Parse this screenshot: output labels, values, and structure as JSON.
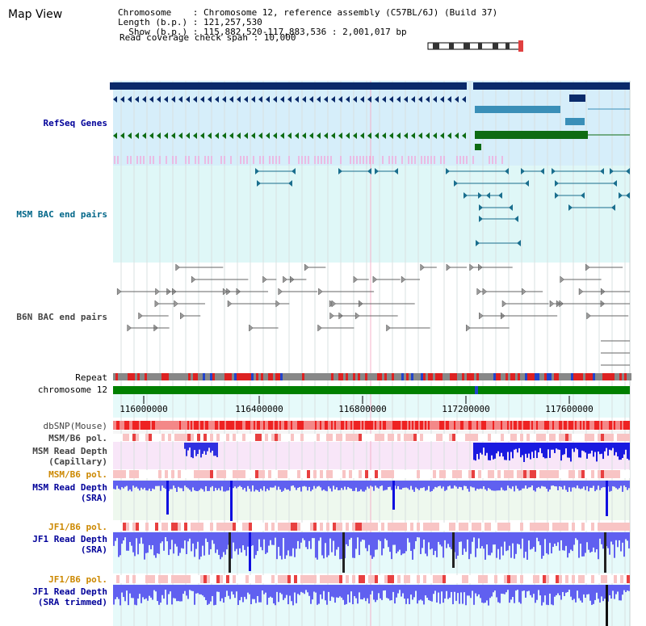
{
  "header": {
    "title": "Map View",
    "chromosome_line": "Chromosome    : Chromosome 12, reference assembly (C57BL/6J) (Build 37)",
    "length_line": "Length (b.p.) : 121,257,530",
    "show_line": "  Show (b.p.) : 115,882,520-117,883,536 : 2,001,017 bp",
    "read_span_line": "Read coverage check span : 10,000"
  },
  "tracks": {
    "refseq": "RefSeq Genes",
    "msm_bac": "MSM BAC end pairs",
    "b6n_bac": "B6N BAC end pairs",
    "repeat": "Repeat",
    "chromosome": "chromosome 12",
    "dbsnp": "dbSNP(Mouse)",
    "msm_b6_pol_1": "MSM/B6 pol.",
    "msm_read_depth_cap_1": "MSM Read Depth",
    "msm_read_depth_cap_2": "(Capillary)",
    "msm_b6_pol_2": "MSM/B6 pol.",
    "msm_read_depth_sra_1": "MSM Read Depth",
    "msm_read_depth_sra_2": "(SRA)",
    "jf1_b6_pol_1": "JF1/B6 pol.",
    "jf1_read_depth_sra_1": "JF1 Read Depth",
    "jf1_read_depth_sra_2": "(SRA)",
    "jf1_b6_pol_2": "JF1/B6 pol.",
    "jf1_read_depth_trim_1": "JF1 Read Depth",
    "jf1_read_depth_trim_2": "(SRA trimmed)"
  },
  "axis": {
    "ticks": [
      "116000000",
      "116400000",
      "116800000",
      "117200000",
      "117600000"
    ]
  },
  "colors": {
    "refseq_bg": "#d6eefa",
    "bac_bg": "#dff7f7",
    "gene_dark": "#0a2a6a",
    "gene_teal": "#3a8fb8",
    "gene_green": "#0d6b12",
    "msm_blue": "#1a6e8e",
    "chrom_green": "#008000",
    "label_blue": "#000099",
    "label_teal": "#006688",
    "label_orange": "#cc8800",
    "label_gray": "#444444"
  }
}
